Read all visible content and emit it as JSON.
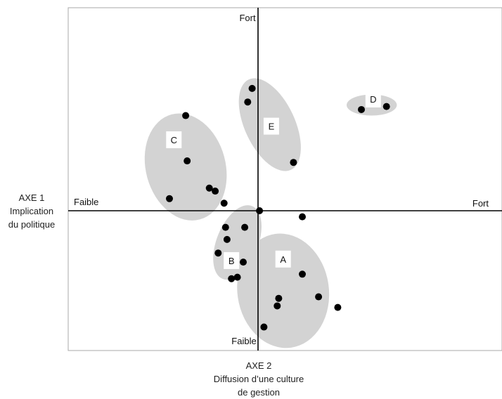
{
  "chart_data": {
    "type": "scatter",
    "title": "",
    "xlabel": "AXE 2\nDiffusion d’une culture\nde gestion",
    "ylabel": "AXE 1\nImplication\ndu politique",
    "xlabel_lines": [
      "AXE 2",
      "Diffusion d’une culture",
      "de gestion"
    ],
    "ylabel_lines": [
      "AXE 1",
      "Implication",
      "du politique"
    ],
    "xlim": [
      -1,
      1
    ],
    "ylim": [
      -1,
      1
    ],
    "grid": false,
    "legend": "none",
    "pole_labels": {
      "x_low": "Faible",
      "x_high": "Fort",
      "y_high": "Fort",
      "y_low": "Faible"
    },
    "colors": {
      "point": "#000000",
      "cluster": "#d3d3d3",
      "axis": "#000000",
      "frame": "#aaaaaa"
    },
    "clusters": [
      {
        "name": "A",
        "center": [
          0.17,
          -0.53
        ],
        "radii": [
          0.31,
          0.38
        ],
        "rotation": -8,
        "label_pos": [
          0.17,
          -0.32
        ],
        "points": [
          [
            0.3,
            -0.04
          ],
          [
            0.3,
            -0.42
          ],
          [
            0.14,
            -0.58
          ],
          [
            0.13,
            -0.63
          ],
          [
            0.41,
            -0.57
          ],
          [
            0.54,
            -0.64
          ],
          [
            0.04,
            -0.77
          ]
        ]
      },
      {
        "name": "B",
        "center": [
          -0.14,
          -0.21
        ],
        "radii": [
          0.14,
          0.26
        ],
        "rotation": 22,
        "label_pos": [
          -0.18,
          -0.33
        ],
        "points": [
          [
            -0.22,
            -0.11
          ],
          [
            -0.09,
            -0.11
          ],
          [
            -0.21,
            -0.19
          ],
          [
            -0.27,
            -0.28
          ],
          [
            -0.1,
            -0.34
          ],
          [
            -0.14,
            -0.44
          ],
          [
            -0.18,
            -0.45
          ]
        ]
      },
      {
        "name": "C",
        "center": [
          -0.49,
          0.29
        ],
        "radii": [
          0.27,
          0.36
        ],
        "rotation": -15,
        "label_pos": [
          -0.57,
          0.47
        ],
        "points": [
          [
            -0.49,
            0.63
          ],
          [
            -0.48,
            0.33
          ],
          [
            -0.33,
            0.15
          ],
          [
            -0.29,
            0.13
          ],
          [
            -0.6,
            0.08
          ],
          [
            -0.23,
            0.05
          ]
        ]
      },
      {
        "name": "E",
        "center": [
          0.08,
          0.57
        ],
        "radii": [
          0.17,
          0.33
        ],
        "rotation": -25,
        "label_pos": [
          0.09,
          0.56
        ],
        "points": [
          [
            -0.04,
            0.81
          ],
          [
            -0.07,
            0.72
          ],
          [
            0.24,
            0.32
          ]
        ]
      },
      {
        "name": "D",
        "center": [
          0.77,
          0.7
        ],
        "radii": [
          0.17,
          0.07
        ],
        "rotation": 0,
        "label_pos": [
          0.78,
          0.74
        ],
        "points": [
          [
            0.7,
            0.67
          ],
          [
            0.87,
            0.69
          ]
        ]
      }
    ],
    "unclustered_points": [
      [
        0.01,
        0.0
      ]
    ]
  }
}
